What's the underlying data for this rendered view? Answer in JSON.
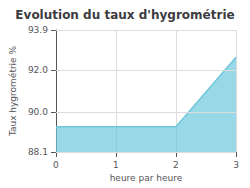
{
  "chart_data": {
    "type": "area",
    "title": "Evolution du taux d'hygrométrie",
    "xlabel": "heure par heure",
    "ylabel": "Taux hygrométrie %",
    "x": [
      0,
      2,
      3
    ],
    "values": [
      89.3,
      89.3,
      92.6
    ],
    "color": "#6ec8dc",
    "xlim": [
      0,
      3
    ],
    "ylim": [
      88.1,
      93.9
    ],
    "xticks": [
      0,
      1,
      2,
      3
    ],
    "yticks": [
      88.1,
      {
        "value": 90,
        "label": "90.0"
      },
      {
        "value": 92,
        "label": "92.0"
      },
      93.9
    ],
    "grid": true
  }
}
